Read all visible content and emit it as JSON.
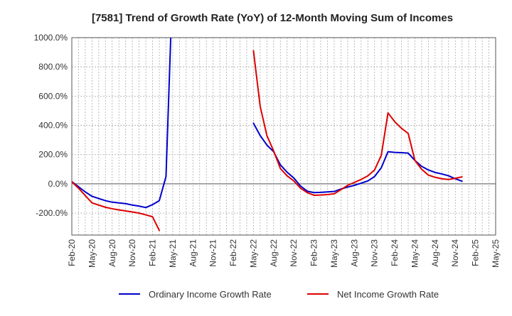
{
  "chart_data": {
    "type": "line",
    "title": "[7581]  Trend of Growth Rate (YoY) of 12-Month Moving Sum of Incomes",
    "xlabel": "",
    "ylabel": "",
    "ylim": [
      -350,
      1000
    ],
    "y_ticks": [
      1000,
      800,
      600,
      400,
      200,
      0,
      -200
    ],
    "y_tick_labels": [
      "1000.0%",
      "800.0%",
      "600.0%",
      "400.0%",
      "200.0%",
      "0.0%",
      "-200.0%"
    ],
    "x_tick_labels": [
      "Feb-20",
      "May-20",
      "Aug-20",
      "Nov-20",
      "Feb-21",
      "May-21",
      "Aug-21",
      "Nov-21",
      "Feb-22",
      "May-22",
      "Aug-22",
      "Nov-22",
      "Feb-23",
      "May-23",
      "Aug-23",
      "Nov-23",
      "Feb-24",
      "May-24",
      "Aug-24",
      "Nov-24",
      "Feb-25",
      "May-25"
    ],
    "x_tick_months": [
      0,
      3,
      6,
      9,
      12,
      15,
      18,
      21,
      24,
      27,
      30,
      33,
      36,
      39,
      42,
      45,
      48,
      51,
      54,
      57,
      60,
      63
    ],
    "x_months_range": [
      0,
      63
    ],
    "grid": true,
    "legend_position": "bottom",
    "series": [
      {
        "name": "Ordinary Income Growth Rate",
        "color": "#0000cc",
        "points": [
          [
            0,
            15
          ],
          [
            1,
            -20
          ],
          [
            2,
            -55
          ],
          [
            3,
            -85
          ],
          [
            4,
            -100
          ],
          [
            5,
            -115
          ],
          [
            6,
            -125
          ],
          [
            7,
            -130
          ],
          [
            8,
            -135
          ],
          [
            9,
            -145
          ],
          [
            10,
            -152
          ],
          [
            11,
            -162
          ],
          [
            12,
            -142
          ],
          [
            13,
            -115
          ],
          [
            14,
            50
          ],
          [
            15,
            1400
          ]
        ],
        "segments_after": [
          [
            [
              27,
              415
            ],
            [
              28,
              330
            ],
            [
              29,
              265
            ],
            [
              30,
              220
            ],
            [
              31,
              130
            ],
            [
              32,
              80
            ],
            [
              33,
              40
            ],
            [
              34,
              -15
            ],
            [
              35,
              -50
            ],
            [
              36,
              -60
            ],
            [
              37,
              -58
            ],
            [
              38,
              -55
            ],
            [
              39,
              -52
            ],
            [
              40,
              -35
            ],
            [
              41,
              -22
            ],
            [
              42,
              -10
            ],
            [
              43,
              5
            ],
            [
              44,
              20
            ],
            [
              45,
              50
            ],
            [
              46,
              110
            ],
            [
              47,
              220
            ],
            [
              48,
              215
            ],
            [
              49,
              213
            ],
            [
              50,
              210
            ],
            [
              51,
              160
            ],
            [
              52,
              120
            ],
            [
              53,
              95
            ],
            [
              54,
              78
            ],
            [
              55,
              68
            ],
            [
              56,
              55
            ],
            [
              57,
              35
            ],
            [
              58,
              18
            ]
          ]
        ]
      },
      {
        "name": "Net Income Growth Rate",
        "color": "#dd0000",
        "points": [
          [
            0,
            15
          ],
          [
            1,
            -30
          ],
          [
            2,
            -80
          ],
          [
            3,
            -130
          ],
          [
            4,
            -145
          ],
          [
            5,
            -160
          ],
          [
            6,
            -170
          ],
          [
            7,
            -178
          ],
          [
            8,
            -185
          ],
          [
            9,
            -192
          ],
          [
            10,
            -200
          ],
          [
            11,
            -212
          ],
          [
            12,
            -225
          ],
          [
            13,
            -318
          ]
        ],
        "segments_after": [
          [
            [
              27,
              910
            ],
            [
              28,
              530
            ],
            [
              29,
              330
            ],
            [
              30,
              225
            ],
            [
              31,
              105
            ],
            [
              32,
              55
            ],
            [
              33,
              20
            ],
            [
              34,
              -30
            ],
            [
              35,
              -60
            ],
            [
              36,
              -78
            ],
            [
              37,
              -76
            ],
            [
              38,
              -73
            ],
            [
              39,
              -68
            ],
            [
              40,
              -40
            ],
            [
              41,
              -10
            ],
            [
              42,
              10
            ],
            [
              43,
              30
            ],
            [
              44,
              55
            ],
            [
              45,
              95
            ],
            [
              46,
              195
            ],
            [
              47,
              485
            ],
            [
              48,
              425
            ],
            [
              49,
              380
            ],
            [
              50,
              345
            ],
            [
              51,
              160
            ],
            [
              52,
              100
            ],
            [
              53,
              60
            ],
            [
              54,
              45
            ],
            [
              55,
              35
            ],
            [
              56,
              30
            ],
            [
              57,
              38
            ],
            [
              58,
              48
            ]
          ]
        ]
      }
    ]
  }
}
